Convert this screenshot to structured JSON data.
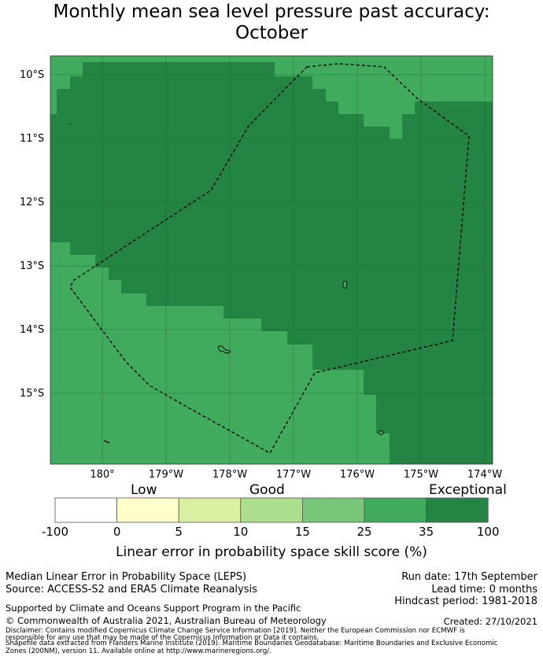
{
  "title_line1": "Monthly mean sea level pressure past accuracy:",
  "title_line2": "October",
  "map": {
    "lat_labels": [
      "10°S",
      "11°S",
      "12°S",
      "13°S",
      "14°S",
      "15°S"
    ],
    "lon_labels": [
      "180°",
      "179°W",
      "178°W",
      "177°W",
      "176°W",
      "175°W",
      "174°W"
    ],
    "colors": {
      "exceptional": "#238443",
      "very_good": "#41ab5d",
      "dashed_boundary": "#000000",
      "gridline": "#1a6630"
    }
  },
  "legend": {
    "category_labels": [
      "Low",
      "Good",
      "Exceptional"
    ],
    "tick_labels": [
      "-100",
      "0",
      "5",
      "10",
      "15",
      "25",
      "35",
      "100"
    ],
    "colors": [
      "#ffffff",
      "#ffffcc",
      "#d9f0a3",
      "#addd8e",
      "#78c679",
      "#41ab5d",
      "#238443"
    ],
    "axis_title": "Linear error in probability space skill score (%)"
  },
  "info": {
    "product": "Median Linear Error in Probability Space (LEPS)",
    "source": "Source: ACCESS-S2 and ERA5 Climate Reanalysis",
    "run_date": "Run date: 17th September",
    "lead_time": "Lead time: 0 months",
    "hindcast": "Hindcast period: 1981-2018",
    "support": "Supported by Climate and Oceans Support Program in the Pacific",
    "copyright": "© Commonwealth of Australia 2021, Australian Bureau of Meteorology",
    "created": "Created: 27/10/2021",
    "disclaimer_1": "Disclaimer: Contains modified Copernicus Climate Change Service Information [2019]. Neither the European Commission nor ECMWF is",
    "disclaimer_2": "responsible for any use that may be made of the Copernicus Information or Data it contains.",
    "shapefile_1": "Shapefile data extracted from Flanders Marine Institute (2019). Maritime Boundaries Geodatabase: Maritime Boundaries and Exclusive Economic",
    "shapefile_2": "Zones (200NM), version 11. Available online at http://www.marineregions.org/."
  }
}
